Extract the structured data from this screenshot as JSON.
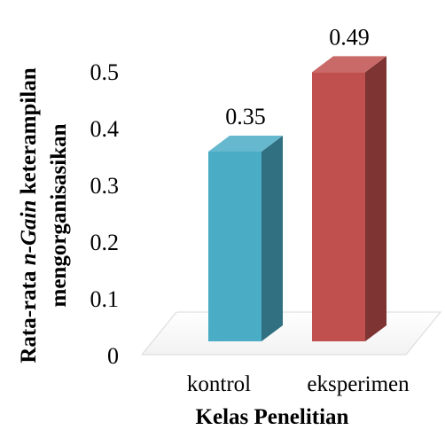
{
  "chart_data": {
    "type": "bar",
    "categories": [
      "kontrol",
      "eksperimen"
    ],
    "values": [
      0.35,
      0.49
    ],
    "data_labels": [
      "0.35",
      "0.49"
    ],
    "bar_colors": [
      "#4BACC6",
      "#C0504D"
    ],
    "xlabel": "Kelas Penelitian",
    "ylabel_parts": [
      "Rata-rata ",
      "n-Gain",
      " keterampilan"
    ],
    "ylabel_line2": "mengorganisasikan",
    "ylim": [
      0,
      0.5
    ],
    "yticks": [
      "0",
      "0.1",
      "0.2",
      "0.3",
      "0.4",
      "0.5"
    ],
    "grid": false,
    "legend": "none",
    "style": "3d"
  }
}
